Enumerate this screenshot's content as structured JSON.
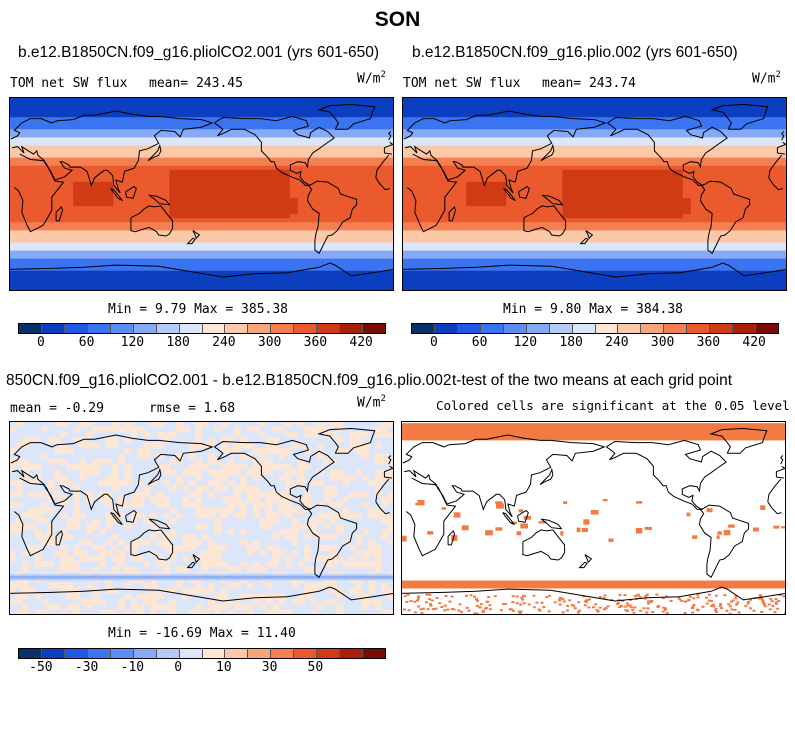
{
  "figure_title": "SON",
  "colors": {
    "abs_scale": [
      "#08306b",
      "#0b3fbf",
      "#1f5ae6",
      "#3b74f0",
      "#5b8ef5",
      "#86aaf7",
      "#b4cbf8",
      "#dbe6fa",
      "#fde7d4",
      "#fbc9a8",
      "#f8a57a",
      "#f47f50",
      "#ea5a2c",
      "#d03a14",
      "#a8200a",
      "#7a0c05"
    ],
    "diff_scale": [
      "#08306b",
      "#0b3fbf",
      "#1f5ae6",
      "#3b74f0",
      "#5b8ef5",
      "#86aaf7",
      "#b4cbf8",
      "#dbe6fa",
      "#fde7d4",
      "#fbc9a8",
      "#f8a57a",
      "#f47f50",
      "#ea5a2c",
      "#d03a14",
      "#a8200a",
      "#7a0c05"
    ],
    "significant": "#f47a43"
  },
  "panels": [
    {
      "title": "b.e12.B1850CN.f09_g16.pliolCO2.001 (yrs 601-650)",
      "left_label": "TOM net SW flux",
      "mean_label": "mean= 243.45",
      "units": "W/m",
      "units_sup": "2",
      "minmax": "Min =   9.79 Max = 385.38"
    },
    {
      "title": "b.e12.B1850CN.f09_g16.plio.002 (yrs 601-650)",
      "left_label": "TOM net SW flux",
      "mean_label": "mean= 243.74",
      "units": "W/m",
      "units_sup": "2",
      "minmax": "Min =   9.80 Max = 384.38"
    },
    {
      "title": "850CN.f09_g16.pliolCO2.001 - b.e12.B1850CN.f09_g16.plio.002",
      "left_label": "mean =  -0.29",
      "mean_label": "rmse =   1.68",
      "units": "W/m",
      "units_sup": "2",
      "minmax": "Min = -16.69 Max =  11.40"
    },
    {
      "title": "t-test of the two means at each grid point",
      "subtitle": "Colored cells are significant at the 0.05 level"
    }
  ],
  "abs_colorbar_labels": [
    "0",
    "60",
    "120",
    "180",
    "240",
    "300",
    "360",
    "420"
  ],
  "diff_colorbar_labels": [
    "-50",
    "-30",
    "-10",
    "0",
    "10",
    "30",
    "50"
  ]
}
